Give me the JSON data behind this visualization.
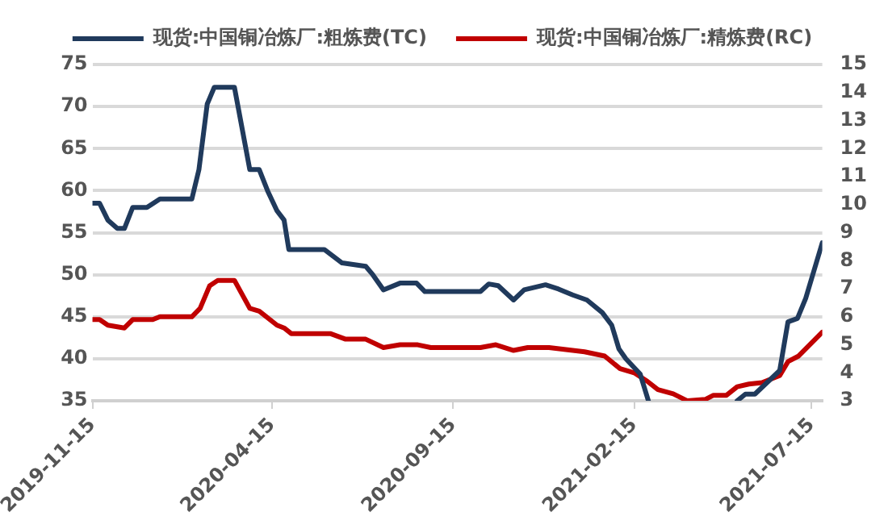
{
  "chart_data": {
    "type": "line",
    "xlim": [
      "2019-11-15",
      "2021-07-24"
    ],
    "xticks": [
      {
        "value": "2019-11-15",
        "label": "2019-11-15"
      },
      {
        "value": "2020-04-15",
        "label": "2020-04-15"
      },
      {
        "value": "2020-09-15",
        "label": "2020-09-15"
      },
      {
        "value": "2021-02-15",
        "label": "2021-02-15"
      },
      {
        "value": "2021-07-15",
        "label": "2021-07-15"
      }
    ],
    "ylim": [
      35,
      75
    ],
    "yticks": [
      35,
      40,
      45,
      50,
      55,
      60,
      65,
      70,
      75
    ],
    "y2lim": [
      3,
      15
    ],
    "y2ticks": [
      3,
      4,
      5,
      6,
      7,
      8,
      9,
      10,
      11,
      12,
      13,
      14,
      15
    ],
    "grid": "y",
    "legend": "top",
    "marker": "none",
    "line_style": "solid",
    "series": [
      {
        "name": "现货:中国铜冶炼厂:粗炼费(TC)",
        "color": "#203a5c",
        "x": [
          "2019-11-15",
          "2019-11-21",
          "2019-11-28",
          "2019-12-06",
          "2019-12-12",
          "2019-12-19",
          "2019-12-31",
          "2020-01-11",
          "2020-02-07",
          "2020-02-13",
          "2020-02-20",
          "2020-02-26",
          "2020-03-14",
          "2020-03-27",
          "2020-04-04",
          "2020-04-11",
          "2020-04-19",
          "2020-04-25",
          "2020-04-29",
          "2020-05-29",
          "2020-06-13",
          "2020-07-03",
          "2020-07-09",
          "2020-07-18",
          "2020-08-01",
          "2020-08-15",
          "2020-08-22",
          "2020-10-08",
          "2020-10-15",
          "2020-10-23",
          "2020-11-05",
          "2020-11-14",
          "2020-12-02",
          "2020-12-13",
          "2020-12-25",
          "2021-01-06",
          "2021-01-19",
          "2021-01-27",
          "2021-02-02",
          "2021-02-08",
          "2021-02-20",
          "2021-02-27",
          "2021-04-01",
          "2021-05-13",
          "2021-05-20",
          "2021-05-28",
          "2021-06-18",
          "2021-06-25",
          "2021-07-03",
          "2021-07-10",
          "2021-07-24"
        ],
        "values": [
          58.5,
          58.5,
          56.5,
          55.5,
          55.5,
          58,
          58,
          59,
          59,
          62.5,
          70.3,
          72.3,
          72.3,
          62.5,
          62.5,
          60,
          57.6,
          56.5,
          53,
          53,
          51.4,
          51,
          50,
          48.2,
          49,
          49,
          48,
          48,
          48.9,
          48.7,
          47,
          48.2,
          48.8,
          48.3,
          47.6,
          47,
          45.5,
          44,
          41.2,
          40,
          38.2,
          35,
          null,
          35,
          35.8,
          35.8,
          38.6,
          44.4,
          44.8,
          47.2,
          53.8
        ]
      },
      {
        "name": "现货:中国铜冶炼厂:精炼费(RC)",
        "color": "#c00000",
        "axis": "y2",
        "x": [
          "2019-11-15",
          "2019-11-21",
          "2019-11-28",
          "2019-12-12",
          "2019-12-19",
          "2020-01-05",
          "2020-01-11",
          "2020-02-07",
          "2020-02-14",
          "2020-02-22",
          "2020-02-29",
          "2020-03-14",
          "2020-03-27",
          "2020-04-04",
          "2020-04-19",
          "2020-04-25",
          "2020-05-01",
          "2020-06-03",
          "2020-06-16",
          "2020-07-03",
          "2020-07-18",
          "2020-08-01",
          "2020-08-16",
          "2020-08-27",
          "2020-10-08",
          "2020-10-21",
          "2020-11-05",
          "2020-11-17",
          "2020-12-05",
          "2021-01-04",
          "2021-01-21",
          "2021-02-03",
          "2021-02-15",
          "2021-02-26",
          "2021-03-07",
          "2021-03-20",
          "2021-04-01",
          "2021-04-16",
          "2021-04-23",
          "2021-05-04",
          "2021-05-13",
          "2021-05-23",
          "2021-06-03",
          "2021-06-18",
          "2021-06-25",
          "2021-07-04",
          "2021-07-24"
        ],
        "values": [
          5.9,
          5.9,
          5.7,
          5.6,
          5.9,
          5.9,
          6,
          6,
          6.3,
          7.1,
          7.3,
          7.3,
          6.3,
          6.2,
          5.7,
          5.6,
          5.4,
          5.4,
          5.2,
          5.2,
          4.9,
          5,
          5,
          4.9,
          4.9,
          5,
          4.8,
          4.9,
          4.9,
          4.75,
          4.6,
          4.15,
          4,
          3.7,
          3.4,
          3.25,
          3,
          3.05,
          3.2,
          3.2,
          3.5,
          3.6,
          3.65,
          3.9,
          4.4,
          4.6,
          5.45
        ]
      }
    ]
  }
}
